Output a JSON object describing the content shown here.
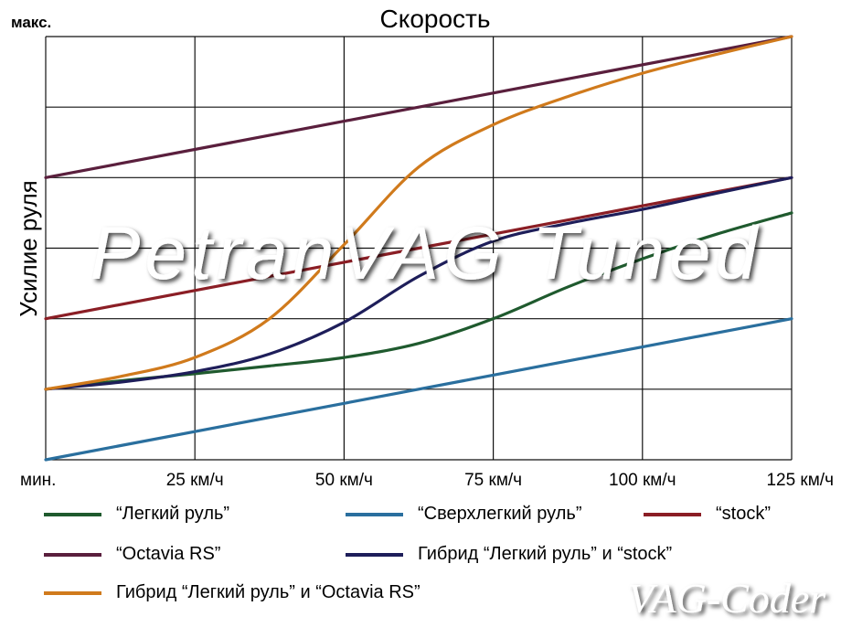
{
  "chart_data": {
    "type": "line",
    "title": "Скорость",
    "ylabel": "Усилие руля",
    "y_top_label": "макс.",
    "x_tick_labels": [
      "мин.",
      "25 км/ч",
      "50 км/ч",
      "75 км/ч",
      "100 км/ч",
      "125 км/ч"
    ],
    "x": [
      0,
      25,
      50,
      75,
      100,
      125
    ],
    "xlim": [
      0,
      125
    ],
    "ylim": [
      0,
      6
    ],
    "grid": true,
    "series": [
      {
        "name": "“Легкий руль”",
        "color": "#1f5a2e",
        "points": [
          [
            0,
            1
          ],
          [
            12.5,
            1.12
          ],
          [
            25,
            1.22
          ],
          [
            37.5,
            1.33
          ],
          [
            50,
            1.45
          ],
          [
            62.5,
            1.65
          ],
          [
            75,
            2.0
          ],
          [
            87.5,
            2.45
          ],
          [
            100,
            2.85
          ],
          [
            112.5,
            3.2
          ],
          [
            125,
            3.5
          ]
        ]
      },
      {
        "name": "“Сверхлегкий руль”",
        "color": "#2a6f9e",
        "points": [
          [
            0,
            0
          ],
          [
            125,
            2
          ]
        ]
      },
      {
        "name": "“stock”",
        "color": "#8b1e25",
        "points": [
          [
            0,
            2
          ],
          [
            125,
            4
          ]
        ]
      },
      {
        "name": "“Octavia RS”",
        "color": "#5a1f3d",
        "points": [
          [
            0,
            4
          ],
          [
            125,
            6
          ]
        ]
      },
      {
        "name": "Гибрид “Легкий руль” и “stock”",
        "color": "#1e1e5a",
        "points": [
          [
            0,
            1
          ],
          [
            12.5,
            1.1
          ],
          [
            25,
            1.25
          ],
          [
            37.5,
            1.5
          ],
          [
            50,
            1.95
          ],
          [
            62.5,
            2.6
          ],
          [
            75,
            3.1
          ],
          [
            87.5,
            3.35
          ],
          [
            100,
            3.55
          ],
          [
            112.5,
            3.78
          ],
          [
            125,
            4
          ]
        ]
      },
      {
        "name": "Гибрид “Легкий руль” и “Octavia RS”",
        "color": "#d07a1c",
        "points": [
          [
            0,
            1
          ],
          [
            12.5,
            1.18
          ],
          [
            25,
            1.45
          ],
          [
            37.5,
            2.0
          ],
          [
            50,
            3.05
          ],
          [
            62.5,
            4.15
          ],
          [
            75,
            4.75
          ],
          [
            87.5,
            5.15
          ],
          [
            100,
            5.48
          ],
          [
            112.5,
            5.75
          ],
          [
            125,
            6
          ]
        ]
      }
    ]
  },
  "watermark": "PetranVAG Tuned",
  "logo": "VAG-Coder"
}
